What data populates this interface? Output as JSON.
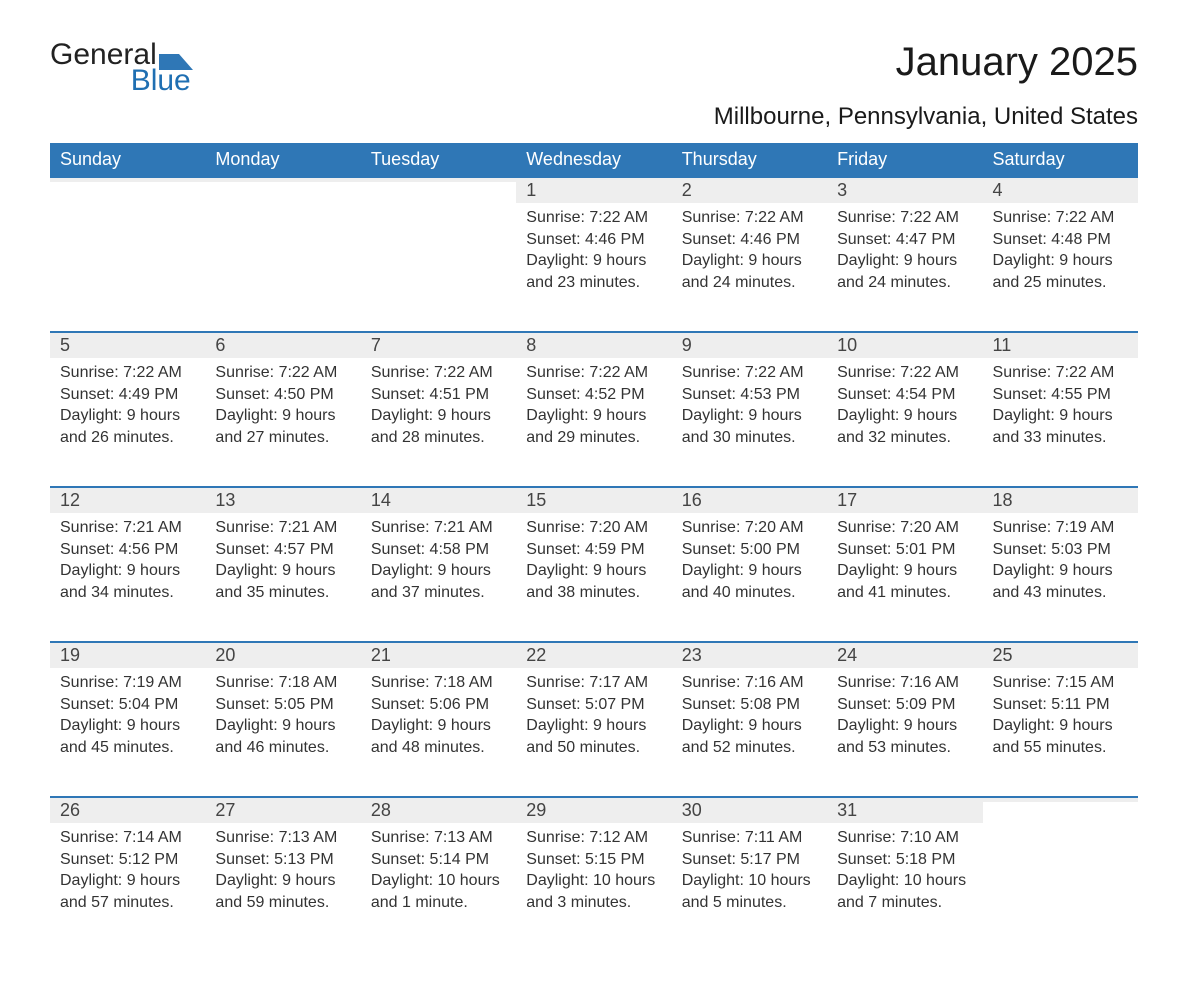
{
  "logo": {
    "text_general": "General",
    "text_blue": "Blue",
    "accent_color": "#2f77b6"
  },
  "title": "January 2025",
  "location": "Millbourne, Pennsylvania, United States",
  "styling": {
    "header_bg": "#2f77b6",
    "header_text_color": "#ffffff",
    "daynum_bg": "#eeeeee",
    "daynum_border_top": "#2f77b6",
    "body_text_color": "#333333",
    "page_bg": "#ffffff",
    "title_fontsize": 40,
    "location_fontsize": 24,
    "th_fontsize": 18,
    "cell_fontsize": 16
  },
  "weekdays": [
    "Sunday",
    "Monday",
    "Tuesday",
    "Wednesday",
    "Thursday",
    "Friday",
    "Saturday"
  ],
  "weeks": [
    [
      null,
      null,
      null,
      {
        "n": "1",
        "sunrise": "7:22 AM",
        "sunset": "4:46 PM",
        "daylight": "9 hours and 23 minutes."
      },
      {
        "n": "2",
        "sunrise": "7:22 AM",
        "sunset": "4:46 PM",
        "daylight": "9 hours and 24 minutes."
      },
      {
        "n": "3",
        "sunrise": "7:22 AM",
        "sunset": "4:47 PM",
        "daylight": "9 hours and 24 minutes."
      },
      {
        "n": "4",
        "sunrise": "7:22 AM",
        "sunset": "4:48 PM",
        "daylight": "9 hours and 25 minutes."
      }
    ],
    [
      {
        "n": "5",
        "sunrise": "7:22 AM",
        "sunset": "4:49 PM",
        "daylight": "9 hours and 26 minutes."
      },
      {
        "n": "6",
        "sunrise": "7:22 AM",
        "sunset": "4:50 PM",
        "daylight": "9 hours and 27 minutes."
      },
      {
        "n": "7",
        "sunrise": "7:22 AM",
        "sunset": "4:51 PM",
        "daylight": "9 hours and 28 minutes."
      },
      {
        "n": "8",
        "sunrise": "7:22 AM",
        "sunset": "4:52 PM",
        "daylight": "9 hours and 29 minutes."
      },
      {
        "n": "9",
        "sunrise": "7:22 AM",
        "sunset": "4:53 PM",
        "daylight": "9 hours and 30 minutes."
      },
      {
        "n": "10",
        "sunrise": "7:22 AM",
        "sunset": "4:54 PM",
        "daylight": "9 hours and 32 minutes."
      },
      {
        "n": "11",
        "sunrise": "7:22 AM",
        "sunset": "4:55 PM",
        "daylight": "9 hours and 33 minutes."
      }
    ],
    [
      {
        "n": "12",
        "sunrise": "7:21 AM",
        "sunset": "4:56 PM",
        "daylight": "9 hours and 34 minutes."
      },
      {
        "n": "13",
        "sunrise": "7:21 AM",
        "sunset": "4:57 PM",
        "daylight": "9 hours and 35 minutes."
      },
      {
        "n": "14",
        "sunrise": "7:21 AM",
        "sunset": "4:58 PM",
        "daylight": "9 hours and 37 minutes."
      },
      {
        "n": "15",
        "sunrise": "7:20 AM",
        "sunset": "4:59 PM",
        "daylight": "9 hours and 38 minutes."
      },
      {
        "n": "16",
        "sunrise": "7:20 AM",
        "sunset": "5:00 PM",
        "daylight": "9 hours and 40 minutes."
      },
      {
        "n": "17",
        "sunrise": "7:20 AM",
        "sunset": "5:01 PM",
        "daylight": "9 hours and 41 minutes."
      },
      {
        "n": "18",
        "sunrise": "7:19 AM",
        "sunset": "5:03 PM",
        "daylight": "9 hours and 43 minutes."
      }
    ],
    [
      {
        "n": "19",
        "sunrise": "7:19 AM",
        "sunset": "5:04 PM",
        "daylight": "9 hours and 45 minutes."
      },
      {
        "n": "20",
        "sunrise": "7:18 AM",
        "sunset": "5:05 PM",
        "daylight": "9 hours and 46 minutes."
      },
      {
        "n": "21",
        "sunrise": "7:18 AM",
        "sunset": "5:06 PM",
        "daylight": "9 hours and 48 minutes."
      },
      {
        "n": "22",
        "sunrise": "7:17 AM",
        "sunset": "5:07 PM",
        "daylight": "9 hours and 50 minutes."
      },
      {
        "n": "23",
        "sunrise": "7:16 AM",
        "sunset": "5:08 PM",
        "daylight": "9 hours and 52 minutes."
      },
      {
        "n": "24",
        "sunrise": "7:16 AM",
        "sunset": "5:09 PM",
        "daylight": "9 hours and 53 minutes."
      },
      {
        "n": "25",
        "sunrise": "7:15 AM",
        "sunset": "5:11 PM",
        "daylight": "9 hours and 55 minutes."
      }
    ],
    [
      {
        "n": "26",
        "sunrise": "7:14 AM",
        "sunset": "5:12 PM",
        "daylight": "9 hours and 57 minutes."
      },
      {
        "n": "27",
        "sunrise": "7:13 AM",
        "sunset": "5:13 PM",
        "daylight": "9 hours and 59 minutes."
      },
      {
        "n": "28",
        "sunrise": "7:13 AM",
        "sunset": "5:14 PM",
        "daylight": "10 hours and 1 minute."
      },
      {
        "n": "29",
        "sunrise": "7:12 AM",
        "sunset": "5:15 PM",
        "daylight": "10 hours and 3 minutes."
      },
      {
        "n": "30",
        "sunrise": "7:11 AM",
        "sunset": "5:17 PM",
        "daylight": "10 hours and 5 minutes."
      },
      {
        "n": "31",
        "sunrise": "7:10 AM",
        "sunset": "5:18 PM",
        "daylight": "10 hours and 7 minutes."
      },
      null
    ]
  ],
  "labels": {
    "sunrise": "Sunrise: ",
    "sunset": "Sunset: ",
    "daylight": "Daylight: "
  }
}
